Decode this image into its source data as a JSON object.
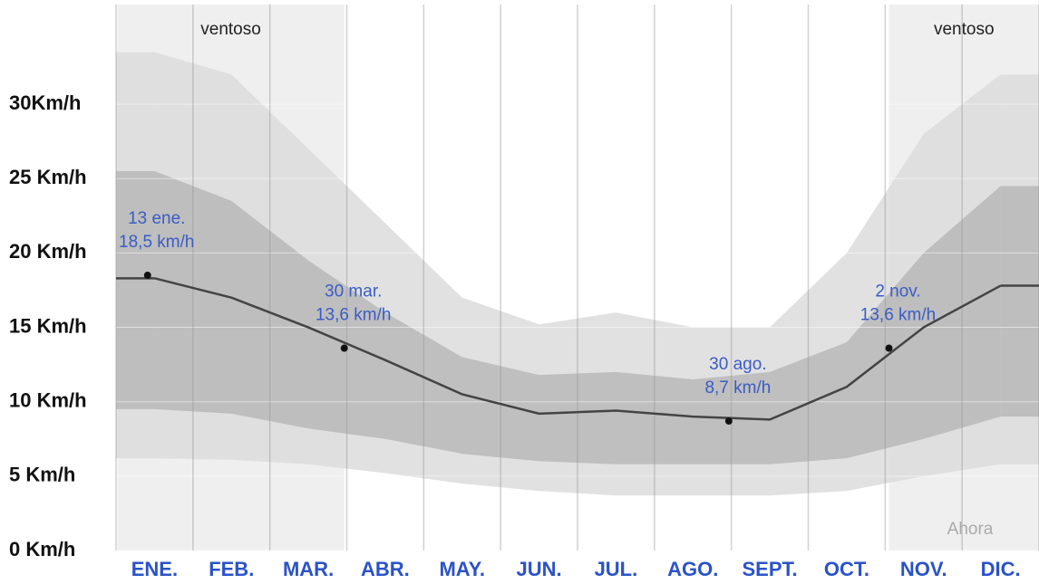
{
  "chart_data": {
    "type": "band-line",
    "categories": [
      "ENE.",
      "FEB.",
      "MAR.",
      "ABR.",
      "MAY.",
      "JUN.",
      "JUL.",
      "AGO.",
      "SEPT.",
      "OCT.",
      "NOV.",
      "DIC."
    ],
    "series": [
      {
        "color": "#dcdcdc",
        "values": [
          33.5,
          32,
          27,
          22,
          17,
          15.2,
          16,
          15,
          15,
          20,
          28,
          32
        ]
      },
      {
        "color": "#b9b9b9",
        "values": [
          25.5,
          23.5,
          19.5,
          16,
          13,
          11.8,
          12,
          11.5,
          12,
          14,
          20,
          24.5
        ]
      },
      {
        "color": "#444444",
        "values": [
          18.3,
          17,
          15,
          12.8,
          10.5,
          9.2,
          9.4,
          9.0,
          8.8,
          11,
          15,
          17.8
        ]
      },
      {
        "color": "#b9b9b9",
        "values": [
          9.5,
          9.2,
          8.2,
          7.5,
          6.5,
          6,
          5.8,
          5.8,
          5.8,
          6.2,
          7.5,
          9
        ]
      },
      {
        "color": "#dcdcdc",
        "values": [
          6.2,
          6.1,
          5.8,
          5.2,
          4.5,
          4.0,
          3.7,
          3.7,
          3.7,
          4.0,
          5,
          5.8
        ]
      }
    ],
    "ylim": [
      0,
      36.7
    ],
    "yticks": [
      {
        "value": 0,
        "label": "0 Km/h"
      },
      {
        "value": 5,
        "label": "5 Km/h"
      },
      {
        "value": 10,
        "label": "10 Km/h"
      },
      {
        "value": 15,
        "label": "15 Km/h"
      },
      {
        "value": 20,
        "label": "20 Km/h"
      },
      {
        "value": 25,
        "label": "25 Km/h"
      },
      {
        "value": 30,
        "label": "30Km/h"
      }
    ],
    "annotations": [
      {
        "date": "13 ene.",
        "month": "ENE.",
        "day": 13,
        "value": 18.5,
        "value_label": "18,5 km/h"
      },
      {
        "date": "30 mar.",
        "month": "MAR.",
        "day": 30,
        "value": 13.6,
        "value_label": "13,6 km/h"
      },
      {
        "date": "30 ago.",
        "month": "AGO.",
        "day": 30,
        "value": 8.7,
        "value_label": "8,7 km/h"
      },
      {
        "date": "2 nov.",
        "month": "NOV.",
        "day": 2,
        "value": 13.6,
        "value_label": "13,6 km/h"
      }
    ],
    "shaded_periods": [
      {
        "label": "ventoso",
        "start_month": "ENE.",
        "start_day": 1,
        "end_month": "MAR.",
        "end_day": 30
      },
      {
        "label": "ventoso",
        "start_month": "NOV.",
        "start_day": 2,
        "end_month": "DIC.",
        "end_day": 31
      }
    ],
    "now_label": "Ahora"
  }
}
